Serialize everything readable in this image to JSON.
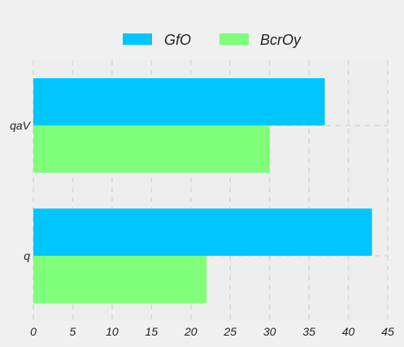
{
  "chart_data": {
    "type": "bar",
    "orientation": "horizontal",
    "categories": [
      "q",
      "qaV"
    ],
    "series": [
      {
        "name": "GfO",
        "values": [
          43,
          37
        ],
        "color": "#00c5ff"
      },
      {
        "name": "BcrOy",
        "values": [
          22,
          30
        ],
        "color": "#80ff7a"
      }
    ],
    "title": "",
    "xlabel": "",
    "ylabel": "",
    "xlim": [
      0,
      45
    ],
    "xticks": [
      0,
      5,
      10,
      15,
      20,
      25,
      30,
      35,
      40,
      45
    ],
    "grid": true,
    "legend_position": "top-center",
    "background": "#f0f0f0",
    "plot_background": "#eeeeee",
    "grid_color": "#d6d6d6"
  }
}
